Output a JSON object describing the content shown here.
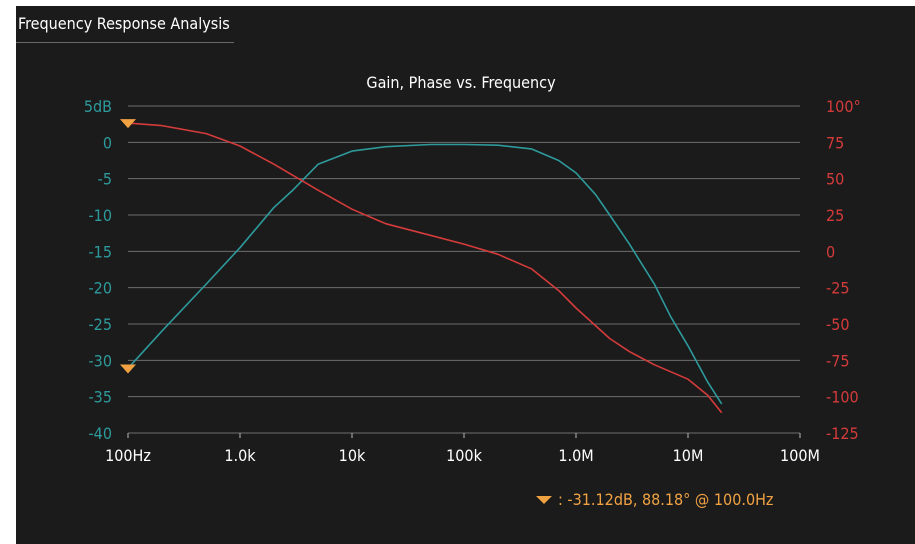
{
  "panel": {
    "title": "Frequency Response Analysis"
  },
  "chart_data": {
    "type": "line",
    "title": "Gain, Phase vs. Frequency",
    "x_scale": "log",
    "xlim": [
      100,
      100000000
    ],
    "x_ticks": [
      100,
      1000,
      10000,
      100000,
      1000000,
      10000000,
      100000000
    ],
    "x_tick_labels": [
      "100Hz",
      "1.0k",
      "10k",
      "100k",
      "1.0M",
      "10M",
      "100M"
    ],
    "y_left": {
      "lim": [
        -40,
        5
      ],
      "ticks": [
        5,
        0,
        -5,
        -10,
        -15,
        -20,
        -25,
        -30,
        -35,
        -40
      ],
      "tick_labels": [
        "5dB",
        "0",
        "-5",
        "-10",
        "-15",
        "-20",
        "-25",
        "-30",
        "-35",
        "-40"
      ],
      "color": "#2e9a9c"
    },
    "y_right": {
      "lim": [
        -125,
        100
      ],
      "ticks": [
        100,
        75,
        50,
        25,
        0,
        -25,
        -50,
        -75,
        -100,
        -125
      ],
      "tick_labels": [
        "100°",
        "75",
        "50",
        "25",
        "0",
        "-25",
        "-50",
        "-75",
        "-100",
        "-125"
      ],
      "color": "#d43b3b"
    },
    "grid": true,
    "series": [
      {
        "axis": "left",
        "color": "#2e9a9c",
        "x": [
          100,
          200,
          500,
          1000,
          2000,
          3000,
          5000,
          10000,
          20000,
          50000,
          100000,
          200000,
          400000,
          700000,
          1000000,
          1500000,
          2000000,
          3000000,
          5000000,
          7000000,
          10000000,
          15000000,
          20000000
        ],
        "y": [
          -31.1,
          -26,
          -19.5,
          -14.5,
          -9,
          -6.5,
          -3,
          -1.2,
          -0.6,
          -0.3,
          -0.3,
          -0.4,
          -0.9,
          -2.5,
          -4.2,
          -7.2,
          -10,
          -14,
          -19.5,
          -24,
          -28,
          -33,
          -36
        ]
      },
      {
        "axis": "right",
        "color": "#d43b3b",
        "x": [
          100,
          200,
          500,
          1000,
          2000,
          5000,
          10000,
          20000,
          50000,
          100000,
          200000,
          400000,
          700000,
          1000000,
          2000000,
          3000000,
          5000000,
          10000000,
          15000000,
          20000000
        ],
        "y": [
          88.2,
          86.5,
          81,
          72.5,
          60,
          42,
          29,
          19,
          11,
          5,
          -2,
          -12,
          -27,
          -39,
          -60,
          -69,
          -78,
          -88,
          -99,
          -111
        ]
      }
    ],
    "markers": [
      {
        "axis": "left",
        "x": 100,
        "y": -31.12
      },
      {
        "axis": "right",
        "x": 100,
        "y": 88.18
      }
    ],
    "marker_readout": ": -31.12dB, 88.18° @ 100.0Hz"
  }
}
